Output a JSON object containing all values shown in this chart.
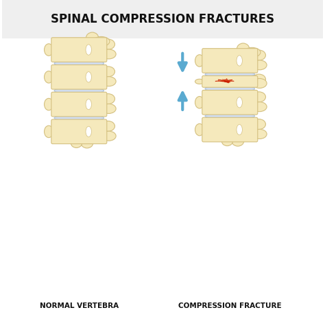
{
  "title": "SPINAL COMPRESSION FRACTURES",
  "label_left": "NORMAL VERTEBRA",
  "label_right": "COMPRESSION FRACTURE",
  "bg_color": "#ffffff",
  "title_bg": "#f0f0f0",
  "bone_fill": "#f5e9bc",
  "bone_edge": "#d4c080",
  "bone_fill2": "#f0e4b4",
  "disc_fill": "#d0dcee",
  "disc_edge": "#b0c4dc",
  "arrow_color": "#5aaad0",
  "crack_color": "#cc2200",
  "title_fontsize": 12,
  "label_fontsize": 7.5,
  "title_color": "#111111",
  "label_color": "#111111"
}
